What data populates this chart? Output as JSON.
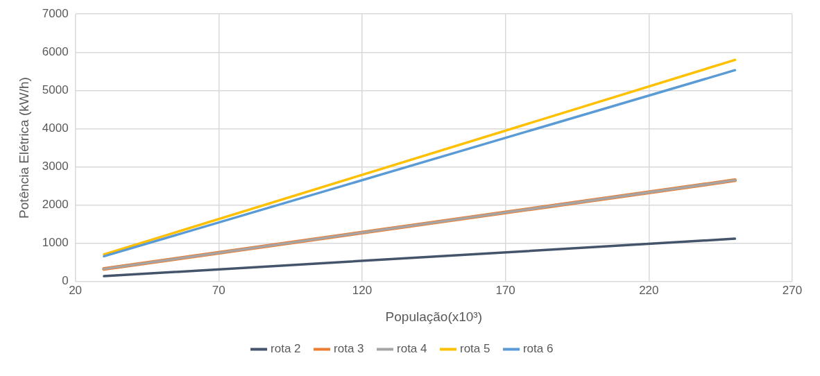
{
  "chart_data": {
    "type": "line",
    "xlabel": "População(x10³)",
    "ylabel": "Potência Elétrica (kW/h)",
    "x": [
      30,
      250
    ],
    "series": [
      {
        "name": "rota 2",
        "color": "#44546a",
        "values": [
          140,
          1120
        ]
      },
      {
        "name": "rota 3",
        "color": "#ed7d31",
        "values": [
          330,
          2650
        ]
      },
      {
        "name": "rota 4",
        "color": "#a5a5a5",
        "values": [
          330,
          2650
        ]
      },
      {
        "name": "rota 5",
        "color": "#ffc000",
        "values": [
          710,
          5800
        ]
      },
      {
        "name": "rota 6",
        "color": "#5b9bd5",
        "values": [
          660,
          5530
        ]
      }
    ],
    "xlim": [
      20,
      270
    ],
    "xticks": [
      20,
      70,
      120,
      170,
      220,
      270
    ],
    "ylim": [
      0,
      7000
    ],
    "yticks": [
      0,
      1000,
      2000,
      3000,
      4000,
      5000,
      6000,
      7000
    ],
    "grid": true,
    "legend": "bottom",
    "marker": "none",
    "line_style": "solid"
  }
}
